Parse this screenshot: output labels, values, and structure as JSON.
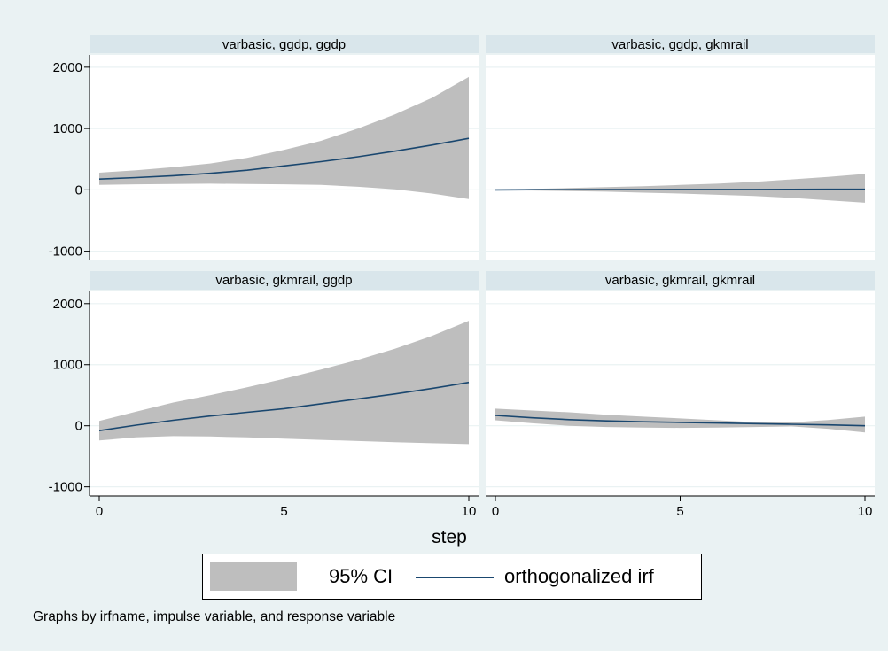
{
  "chart_data": {
    "type": "line",
    "xlabel": "step",
    "x": [
      0,
      1,
      2,
      3,
      4,
      5,
      6,
      7,
      8,
      9,
      10
    ],
    "xticks": [
      "0",
      "5",
      "10"
    ],
    "xlim": [
      0,
      10
    ],
    "ylim": [
      -1000,
      2000
    ],
    "yticks": [
      "-1000",
      "0",
      "1000",
      "2000"
    ],
    "grid": true,
    "legend_position": "bottom",
    "note": "Graphs by irfname, impulse variable, and response variable",
    "series_style": {
      "ci_color": "#bebebe",
      "irf_color": "#1a476f"
    },
    "legend": [
      {
        "label": "95% CI",
        "kind": "area"
      },
      {
        "label": "orthogonalized irf",
        "kind": "line"
      }
    ],
    "panels": [
      {
        "title": "varbasic, ggdp, ggdp",
        "irf": [
          175,
          200,
          230,
          270,
          320,
          390,
          460,
          540,
          630,
          730,
          840
        ],
        "lower": [
          80,
          90,
          95,
          100,
          95,
          90,
          80,
          50,
          10,
          -60,
          -150
        ],
        "upper": [
          280,
          320,
          370,
          430,
          520,
          650,
          800,
          1000,
          1230,
          1500,
          1840
        ]
      },
      {
        "title": "varbasic, ggdp, gkmrail",
        "irf": [
          0,
          2,
          3,
          4,
          5,
          6,
          6,
          7,
          8,
          9,
          10
        ],
        "lower": [
          0,
          -10,
          -20,
          -30,
          -45,
          -60,
          -80,
          -100,
          -130,
          -170,
          -210
        ],
        "upper": [
          0,
          15,
          30,
          45,
          60,
          80,
          100,
          130,
          170,
          210,
          260
        ]
      },
      {
        "title": "varbasic, gkmrail, ggdp",
        "irf": [
          -80,
          10,
          90,
          160,
          220,
          280,
          360,
          440,
          520,
          610,
          710
        ],
        "lower": [
          -240,
          -190,
          -170,
          -175,
          -190,
          -210,
          -230,
          -250,
          -270,
          -285,
          -300
        ],
        "upper": [
          80,
          230,
          380,
          500,
          630,
          770,
          920,
          1080,
          1260,
          1470,
          1720
        ]
      },
      {
        "title": "varbasic, gkmrail, gkmrail",
        "irf": [
          170,
          130,
          100,
          80,
          65,
          55,
          45,
          35,
          25,
          15,
          0
        ],
        "lower": [
          90,
          40,
          0,
          -20,
          -30,
          -35,
          -30,
          -20,
          -10,
          -50,
          -110
        ],
        "upper": [
          280,
          250,
          220,
          180,
          150,
          120,
          90,
          60,
          55,
          95,
          150
        ]
      }
    ]
  }
}
